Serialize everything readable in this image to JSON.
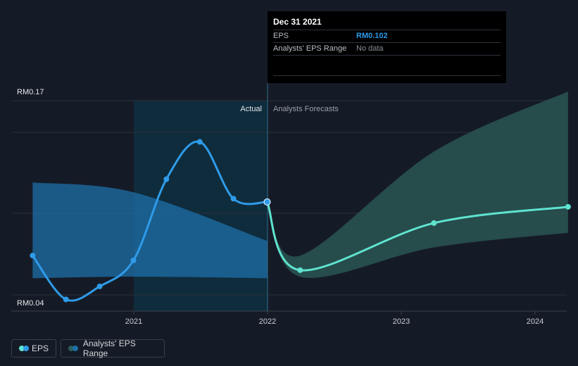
{
  "tooltip": {
    "date": "Dec 31 2021",
    "rows": [
      {
        "label": "EPS",
        "value": "RM0.102"
      },
      {
        "label": "Analysts' EPS Range",
        "value": "No data"
      }
    ]
  },
  "legend": {
    "eps": "EPS",
    "range": "Analysts' EPS Range"
  },
  "colors": {
    "eps_actual": "#2f9be8",
    "eps_forecast": "#5fe3cf",
    "range_actual": "#1e6fa8",
    "range_forecast": "#2c5e5a",
    "highlight": "#0b3a4e"
  },
  "chart_data": {
    "type": "line",
    "y_axis_labels": [
      "RM0.17",
      "RM0.04"
    ],
    "ylim": [
      0.04,
      0.17
    ],
    "x_ticks": [
      "2021",
      "2022",
      "2023",
      "2024"
    ],
    "region_labels": {
      "actual": "Actual",
      "forecast": "Analysts Forecasts"
    },
    "series": [
      {
        "name": "EPS",
        "points": [
          {
            "x": "2020-03-31",
            "y": 0.069
          },
          {
            "x": "2020-06-30",
            "y": 0.042
          },
          {
            "x": "2020-09-30",
            "y": 0.05
          },
          {
            "x": "2020-12-31",
            "y": 0.066
          },
          {
            "x": "2021-03-31",
            "y": 0.116
          },
          {
            "x": "2021-06-30",
            "y": 0.139
          },
          {
            "x": "2021-09-30",
            "y": 0.104
          },
          {
            "x": "2021-12-31",
            "y": 0.102
          }
        ]
      },
      {
        "name": "EPS forecast",
        "points": [
          {
            "x": "2021-12-31",
            "y": 0.102
          },
          {
            "x": "2022-03-31",
            "y": 0.06
          },
          {
            "x": "2023-03-31",
            "y": 0.089
          },
          {
            "x": "2024-03-31",
            "y": 0.099
          }
        ]
      }
    ],
    "range_actual": [
      {
        "x": "2020-03-31",
        "low": 0.055,
        "high": 0.114
      },
      {
        "x": "2020-12-31",
        "low": 0.056,
        "high": 0.108
      },
      {
        "x": "2021-12-31",
        "low": 0.055,
        "high": 0.078
      }
    ],
    "range_forecast": [
      {
        "x": "2021-12-31",
        "low": 0.102,
        "high": 0.102
      },
      {
        "x": "2022-03-31",
        "low": 0.056,
        "high": 0.069
      },
      {
        "x": "2023-03-31",
        "low": 0.074,
        "high": 0.133
      },
      {
        "x": "2024-03-31",
        "low": 0.083,
        "high": 0.17
      }
    ]
  }
}
